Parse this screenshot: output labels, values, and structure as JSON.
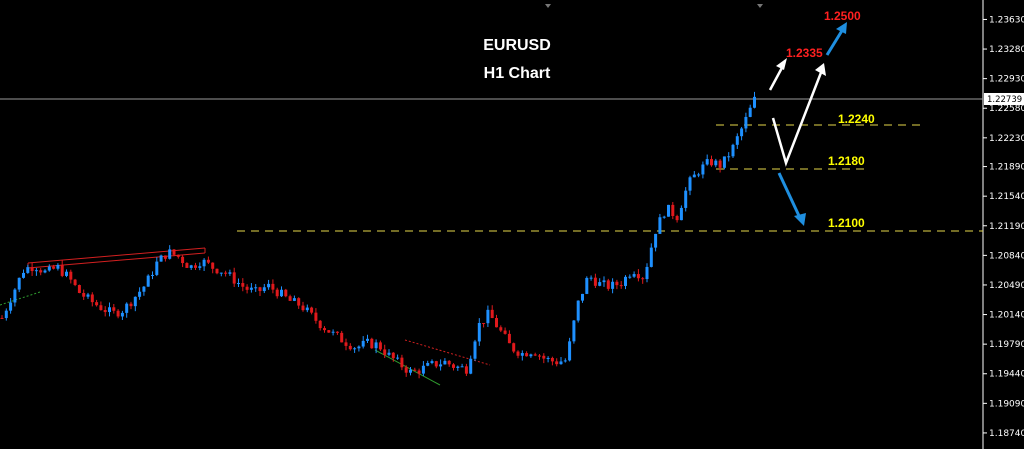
{
  "window": {
    "title_line1": "EURUSD",
    "title_line2": "H1 Chart"
  },
  "colors": {
    "background": "#000000",
    "bull": "#1e90ff",
    "bear": "#e0191c",
    "level_line": "#e6d84a",
    "level_text": "#ffff00",
    "target_text": "#ff2020",
    "arrow_white": "#ffffff",
    "arrow_blue": "#1f8fe0",
    "axis": "#ffffff"
  },
  "chart_data": {
    "type": "candlestick",
    "symbol": "EURUSD",
    "timeframe": "H1",
    "ylim": [
      1.1855,
      1.2386
    ],
    "y_ticks": [
      "1.23630",
      "1.23280",
      "1.22930",
      "1.22580",
      "1.22230",
      "1.21890",
      "1.21540",
      "1.21190",
      "1.20840",
      "1.20490",
      "1.20140",
      "1.19790",
      "1.19440",
      "1.19090",
      "1.18740"
    ],
    "current_price": "1.22739",
    "levels": [
      {
        "label": "1.2240",
        "value": 1.224
      },
      {
        "label": "1.2180",
        "value": 1.218
      },
      {
        "label": "1.2100",
        "value": 1.21
      }
    ],
    "targets": [
      {
        "label": "1.2335",
        "value": 1.2335
      },
      {
        "label": "1.2500",
        "value": 1.25
      }
    ],
    "path": [
      1.201,
      1.204,
      1.2068,
      1.2072,
      1.2063,
      1.207,
      1.2058,
      1.204,
      1.203,
      1.2022,
      1.2015,
      1.202,
      1.2035,
      1.205,
      1.2075,
      1.2088,
      1.2082,
      1.207,
      1.2078,
      1.207,
      1.2065,
      1.2055,
      1.2045,
      1.204,
      1.2048,
      1.204,
      1.203,
      1.2025,
      1.2012,
      1.2,
      1.199,
      1.1982,
      1.1975,
      1.198,
      1.1978,
      1.1965,
      1.1955,
      1.1945,
      1.195,
      1.1955,
      1.1958,
      1.1952,
      1.195,
      1.2,
      1.2015,
      1.1995,
      1.1975,
      1.1968,
      1.1972,
      1.1962,
      1.1958,
      1.196,
      1.2025,
      1.206,
      1.205,
      1.2047,
      1.2052,
      1.2068,
      1.2058,
      1.2112,
      1.214,
      1.213,
      1.2168,
      1.2185,
      1.2195,
      1.219,
      1.221,
      1.2238,
      1.2268
    ]
  }
}
